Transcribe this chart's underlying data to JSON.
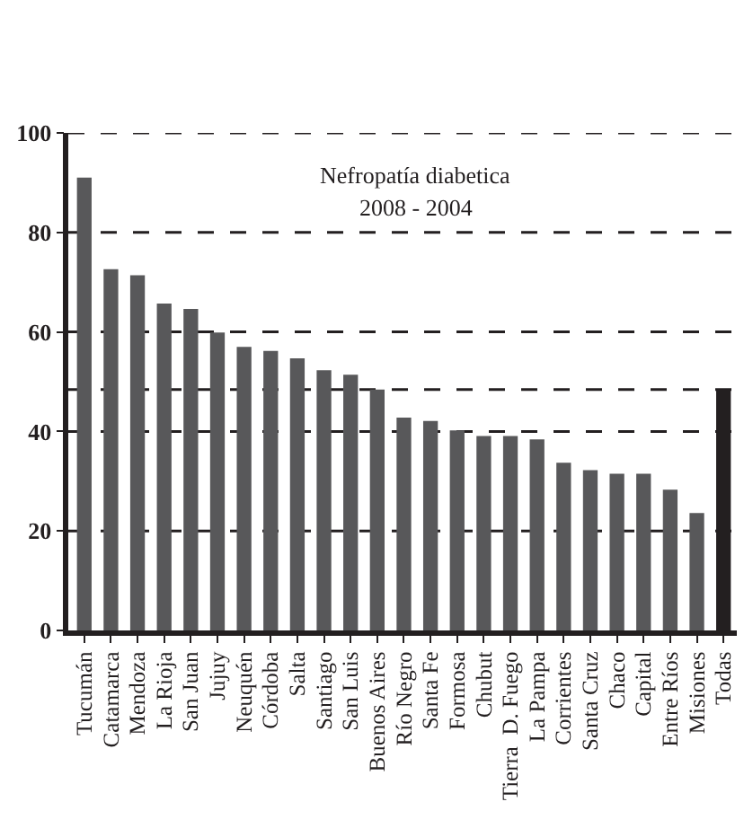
{
  "chart_data": {
    "type": "bar",
    "title": "Nefropatía diabetica",
    "subtitle": "2008 - 2004",
    "categories": [
      "Tucumán",
      "Catamarca",
      "Mendoza",
      "La Rioja",
      "San Juan",
      "Jujuy",
      "Neuquén",
      "Córdoba",
      "Salta",
      "Santiago",
      "San Luis",
      "Buenos Aires",
      "Río Negro",
      "Santa Fe",
      "Formosa",
      "Chubut",
      "Tierra  D. Fuego",
      "La Pampa",
      "Corrientes",
      "Santa Cruz",
      "Chaco",
      "Capital",
      "Entre Ríos",
      "Misiones",
      "Todas"
    ],
    "values": [
      91,
      72.6,
      71.4,
      65.7,
      64.6,
      59.9,
      57,
      56.2,
      54.7,
      52.3,
      51.4,
      48.4,
      42.8,
      42.1,
      40.2,
      39.1,
      39.1,
      38.4,
      33.7,
      32.2,
      31.5,
      31.5,
      28.3,
      23.6,
      48.4
    ],
    "colors": [
      "#58585a",
      "#58585a",
      "#58585a",
      "#58585a",
      "#58585a",
      "#58585a",
      "#58585a",
      "#58585a",
      "#58585a",
      "#58585a",
      "#58585a",
      "#58585a",
      "#58585a",
      "#58585a",
      "#58585a",
      "#58585a",
      "#58585a",
      "#58585a",
      "#58585a",
      "#58585a",
      "#58585a",
      "#58585a",
      "#58585a",
      "#58585a",
      "#231f20"
    ],
    "ylim": [
      0,
      100
    ],
    "yticks": [
      0,
      20,
      40,
      60,
      80,
      100
    ],
    "grid": "y",
    "ref_lines": [
      {
        "axis": "y",
        "value": 48.4,
        "color": "#231f20",
        "line_style": "dashed"
      }
    ]
  }
}
